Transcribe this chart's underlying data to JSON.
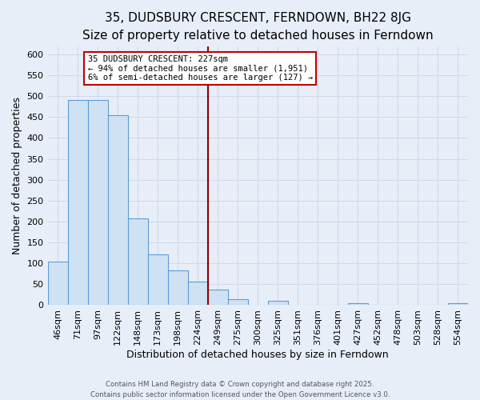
{
  "title": "35, DUDSBURY CRESCENT, FERNDOWN, BH22 8JG",
  "subtitle": "Size of property relative to detached houses in Ferndown",
  "xlabel": "Distribution of detached houses by size in Ferndown",
  "ylabel": "Number of detached properties",
  "footer_lines": [
    "Contains HM Land Registry data © Crown copyright and database right 2025.",
    "Contains public sector information licensed under the Open Government Licence v3.0."
  ],
  "bin_labels": [
    "46sqm",
    "71sqm",
    "97sqm",
    "122sqm",
    "148sqm",
    "173sqm",
    "198sqm",
    "224sqm",
    "249sqm",
    "275sqm",
    "300sqm",
    "325sqm",
    "351sqm",
    "376sqm",
    "401sqm",
    "427sqm",
    "452sqm",
    "478sqm",
    "503sqm",
    "528sqm",
    "554sqm"
  ],
  "bar_values": [
    105,
    490,
    490,
    455,
    207,
    122,
    83,
    57,
    37,
    15,
    0,
    10,
    0,
    0,
    0,
    5,
    0,
    0,
    0,
    0,
    5
  ],
  "bar_color": "#cfe2f3",
  "bar_edge_color": "#5b9bd5",
  "vline_x_index": 7.5,
  "vline_color": "#8b0000",
  "annotation_line1": "35 DUDSBURY CRESCENT: 227sqm",
  "annotation_line2": "← 94% of detached houses are smaller (1,951)",
  "annotation_line3": "6% of semi-detached houses are larger (127) →",
  "annotation_box_color": "#ffffff",
  "annotation_box_edge": "#c00000",
  "ylim": [
    0,
    620
  ],
  "yticks": [
    0,
    50,
    100,
    150,
    200,
    250,
    300,
    350,
    400,
    450,
    500,
    550,
    600
  ],
  "grid_color": "#c8d4e8",
  "background_color": "#e8eef8",
  "title_fontsize": 11,
  "subtitle_fontsize": 9.5,
  "axis_label_fontsize": 9,
  "tick_fontsize": 8
}
